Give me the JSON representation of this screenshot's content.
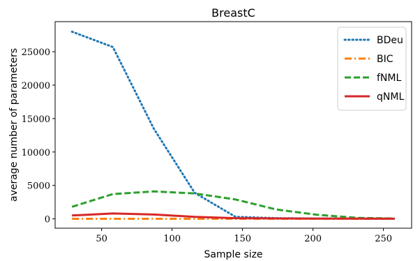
{
  "chart_data": {
    "type": "line",
    "title": "BreastC",
    "xlabel": "Sample size",
    "ylabel": "average number of parameters",
    "xlim": [
      17,
      270
    ],
    "ylim": [
      -1400,
      29500
    ],
    "xticks": [
      50,
      100,
      150,
      200,
      250
    ],
    "xtick_labels": [
      "50",
      "100",
      "150",
      "200",
      "250"
    ],
    "yticks": [
      0,
      5000,
      10000,
      15000,
      20000,
      25000
    ],
    "ytick_labels": [
      "0",
      "5000",
      "10000",
      "15000",
      "20000",
      "25000"
    ],
    "grid": false,
    "legend_position": "top-right",
    "series": [
      {
        "name": "BDeu",
        "color": "#1f77b4",
        "style": "dotted",
        "x": [
          29,
          58,
          87,
          116,
          145,
          174,
          203,
          232,
          258
        ],
        "y": [
          28000,
          25700,
          13500,
          3900,
          300,
          100,
          50,
          30,
          20
        ]
      },
      {
        "name": "BIC",
        "color": "#ff7f0e",
        "style": "dashdot",
        "x": [
          29,
          58,
          87,
          116,
          145,
          174,
          203,
          232,
          258
        ],
        "y": [
          10,
          10,
          10,
          10,
          10,
          10,
          10,
          10,
          10
        ]
      },
      {
        "name": "fNML",
        "color": "#2ca02c",
        "style": "dashed",
        "x": [
          29,
          58,
          87,
          116,
          145,
          174,
          203,
          232,
          258
        ],
        "y": [
          1800,
          3700,
          4100,
          3800,
          2900,
          1400,
          600,
          150,
          50
        ]
      },
      {
        "name": "qNML",
        "color": "#d62728",
        "style": "solid",
        "x": [
          29,
          58,
          87,
          116,
          145,
          174,
          203,
          232,
          258
        ],
        "y": [
          500,
          800,
          650,
          300,
          100,
          60,
          40,
          30,
          20
        ]
      }
    ]
  }
}
